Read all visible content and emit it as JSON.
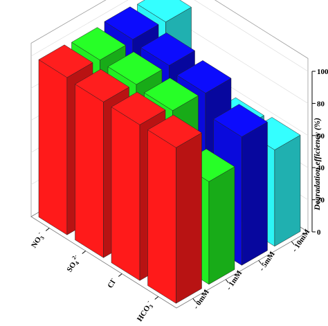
{
  "chart_data": {
    "type": "bar3d",
    "title": "",
    "zlabel": "Degradation efficiency (%)",
    "zlim": [
      0,
      100
    ],
    "z_ticks": [
      "0",
      "20",
      "40",
      "60",
      "80",
      "100"
    ],
    "anions": [
      {
        "main": "NO",
        "sub": "3",
        "sup": "-"
      },
      {
        "main": "SO",
        "sub": "4",
        "sup": "2-"
      },
      {
        "main": "Cl",
        "sub": "",
        "sup": "-"
      },
      {
        "main": "HCO",
        "sub": "3",
        "sup": "-"
      }
    ],
    "concentrations": [
      "0mM",
      "1mM",
      "5mM",
      "10mM"
    ],
    "colors": [
      "#ff1a1a",
      "#22ee22",
      "#0a0adc",
      "#2df5f5"
    ],
    "values": [
      [
        98,
        97,
        98,
        97
      ],
      [
        97,
        96,
        96,
        62
      ],
      [
        97,
        94,
        93,
        58
      ],
      [
        97,
        64,
        80,
        60
      ]
    ]
  }
}
